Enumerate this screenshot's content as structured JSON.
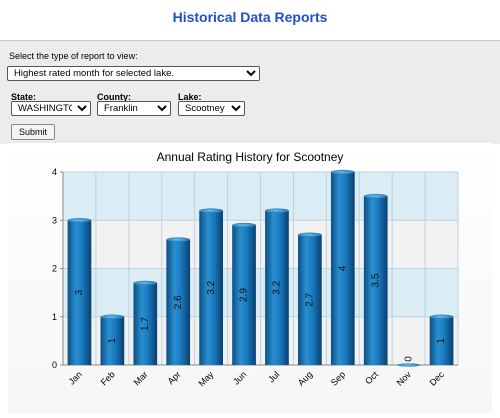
{
  "page": {
    "title": "Historical Data Reports"
  },
  "form": {
    "prompt": "Select the type of report to view:",
    "report_type": "Highest rated month for selected lake.",
    "state_label": "State:",
    "state_value": "WASHINGTON",
    "county_label": "County:",
    "county_value": "Franklin",
    "lake_label": "Lake:",
    "lake_value": "Scootney",
    "submit_label": "Submit"
  },
  "colors": {
    "title": "#1f4fcf",
    "bar": "#1476b8",
    "band": "#dcecf4"
  },
  "chart_data": {
    "type": "bar",
    "title": "Annual Rating History for Scootney",
    "categories": [
      "Jan",
      "Feb",
      "Mar",
      "Apr",
      "May",
      "Jun",
      "Jul",
      "Aug",
      "Sep",
      "Oct",
      "Nov",
      "Dec"
    ],
    "values": [
      3,
      1,
      1.7,
      2.6,
      3.2,
      2.9,
      3.2,
      2.7,
      4,
      3.5,
      0,
      1
    ],
    "data_labels": [
      "3",
      "1",
      "1.7",
      "2.6",
      "3.2",
      "2.9",
      "3.2",
      "2.7",
      "4",
      "3.5",
      "0",
      "1"
    ],
    "yticks": [
      "0",
      "1",
      "2",
      "3",
      "4"
    ],
    "ylim": [
      0,
      4
    ],
    "grid": true
  }
}
